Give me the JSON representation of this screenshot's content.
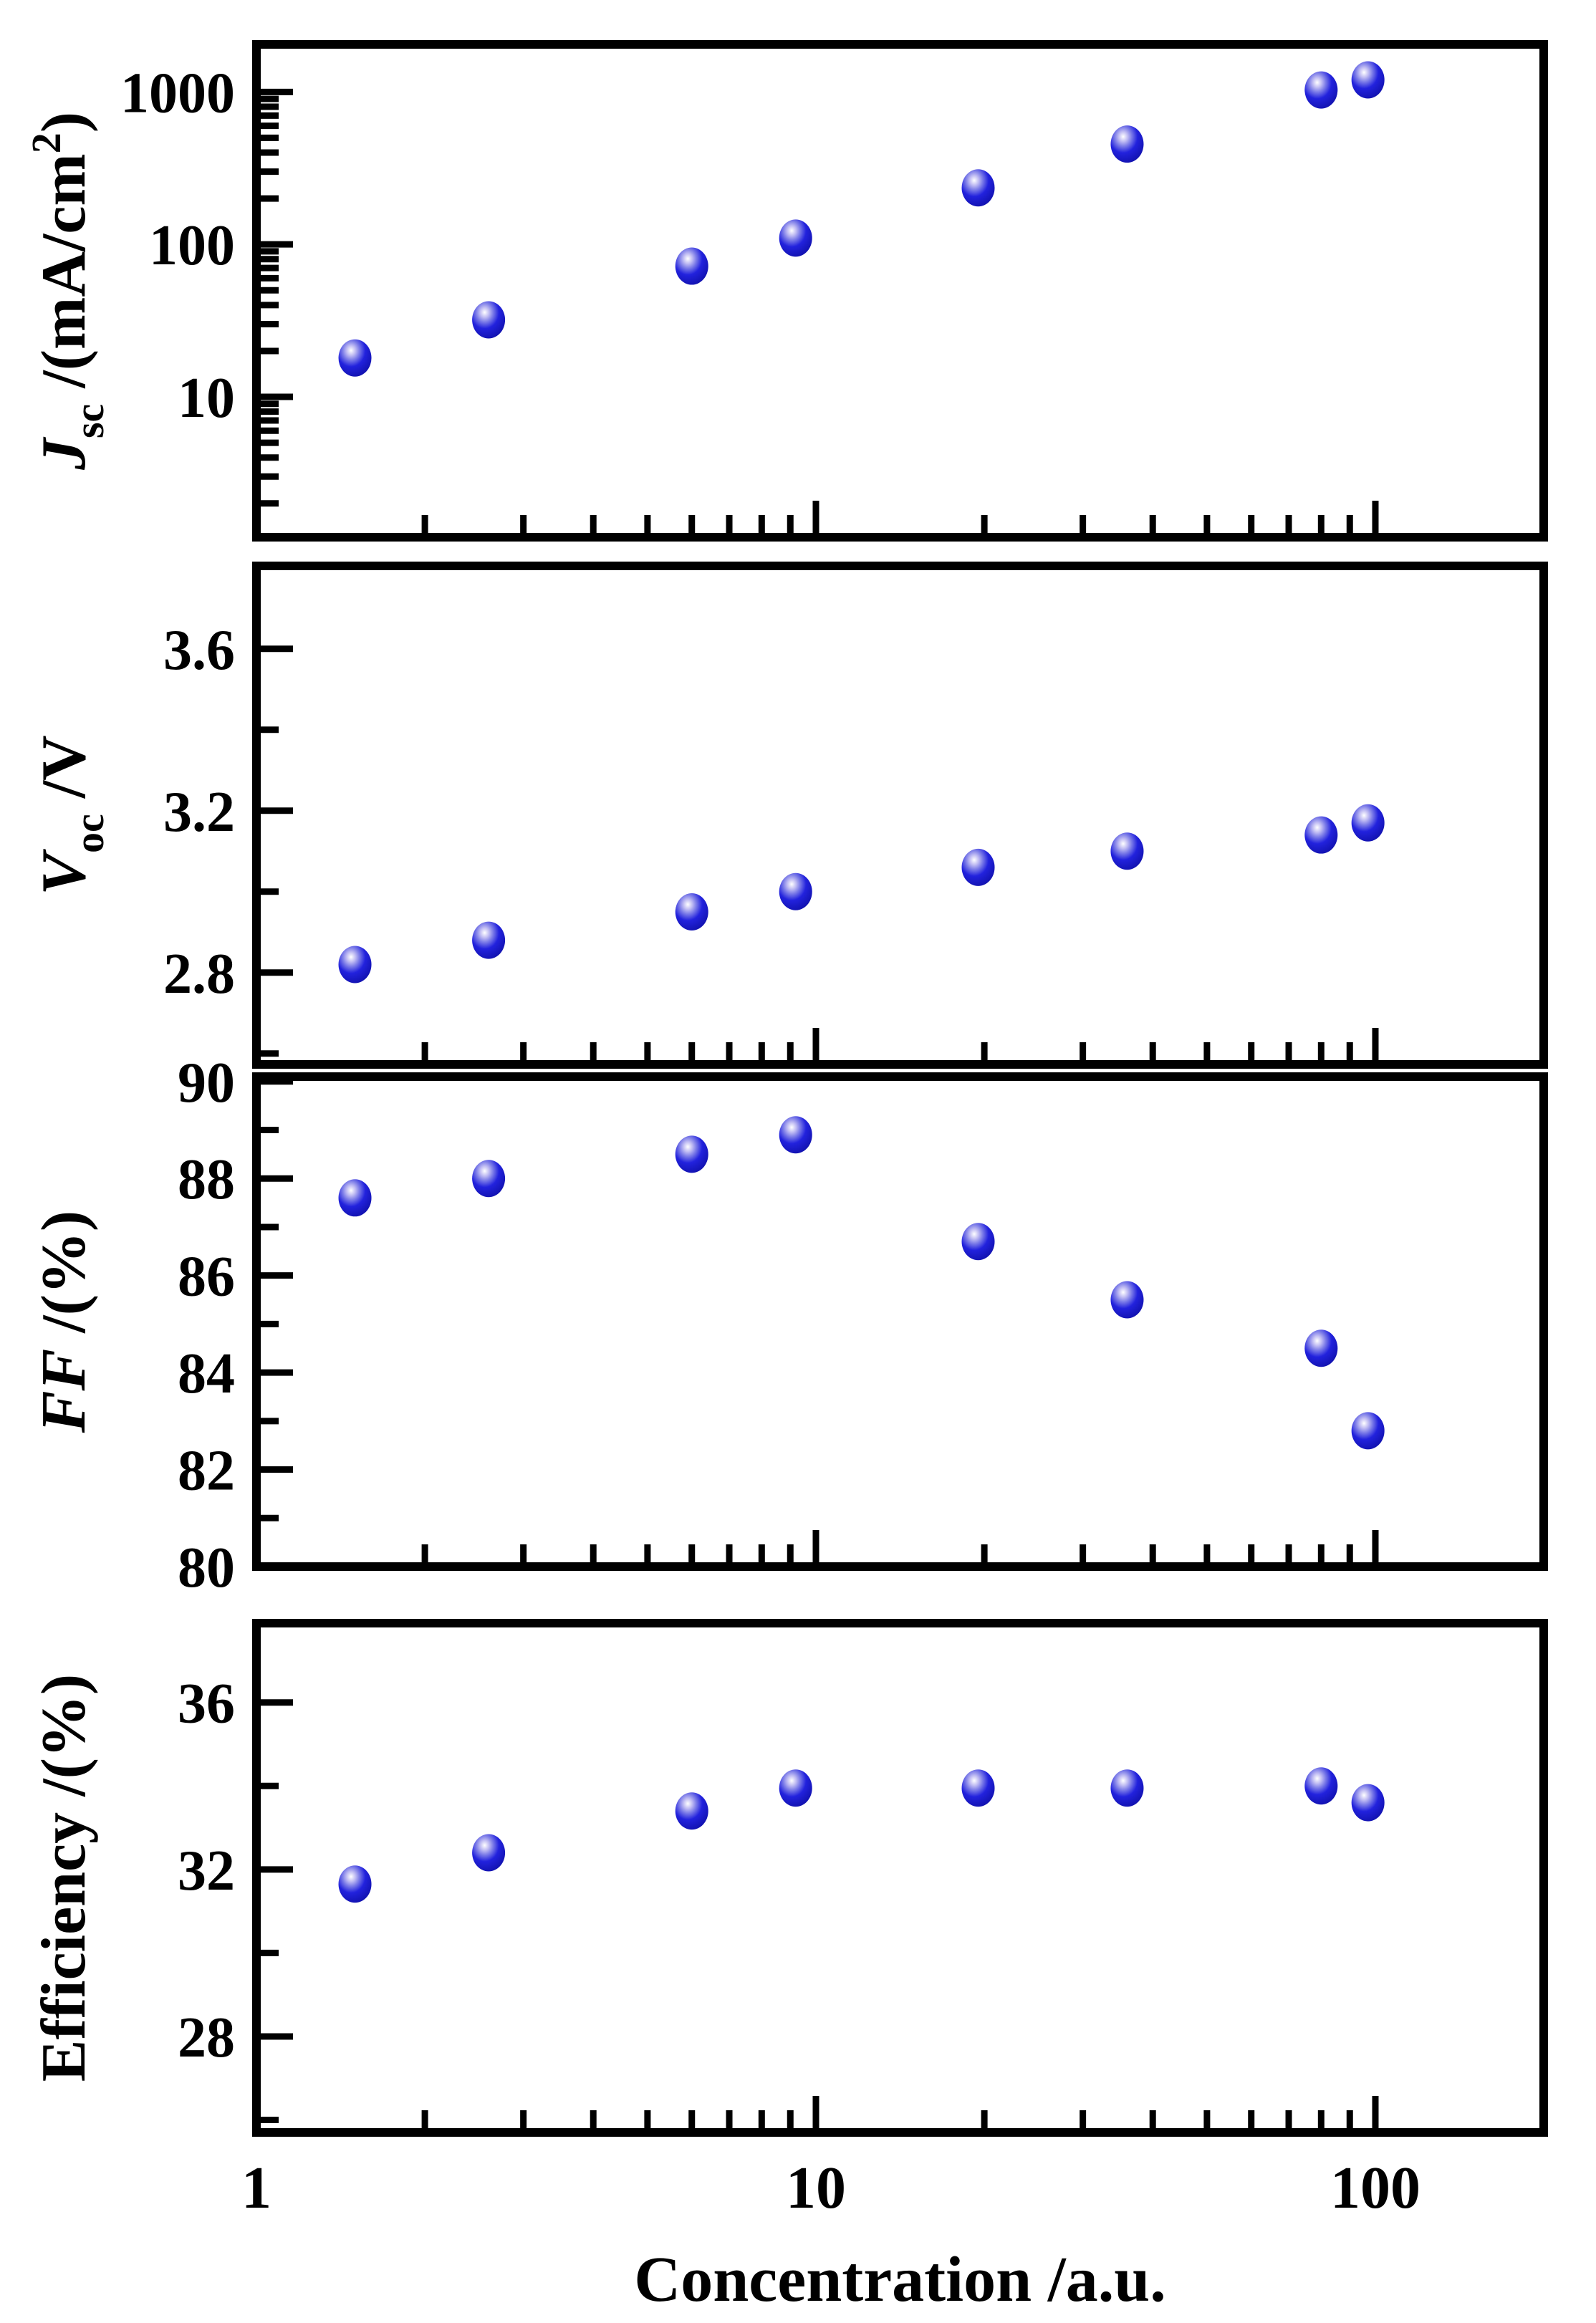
{
  "figure": {
    "title": "",
    "background_color": "#ffffff",
    "axis_color": "#000000",
    "marker_color": "#2222dd",
    "marker_highlight": "#ffffff"
  },
  "chart_data": {
    "type": "scatter",
    "x": [
      1.5,
      2.6,
      6.0,
      9.2,
      19.5,
      36,
      80,
      97
    ],
    "xlabel": "Concentration /a.u.",
    "x_scale": "log",
    "x_range": [
      1,
      200
    ],
    "x_tick_labels": [
      "1",
      "10",
      "100"
    ],
    "x_tick_values": [
      1,
      10,
      100
    ],
    "grid": false,
    "legend": "none",
    "panels": [
      {
        "name": "jsc",
        "ylabel_plain": "Jsc /(mA/cm2)",
        "ylabel_parts": [
          {
            "t": "J",
            "style": "italic"
          },
          {
            "t": "sc",
            "script": "sub"
          },
          {
            "t": " /(mA/cm"
          },
          {
            "t": "2",
            "script": "sup"
          },
          {
            "t": ")"
          }
        ],
        "y_scale": "log",
        "y_range": [
          1.2,
          2050
        ],
        "y_tick_values": [
          10,
          100,
          1000
        ],
        "y_tick_labels": [
          "10",
          "100",
          "1000"
        ],
        "values": [
          18,
          32,
          72,
          110,
          235,
          455,
          1030,
          1200
        ]
      },
      {
        "name": "voc",
        "ylabel_plain": "Voc /V",
        "ylabel_parts": [
          {
            "t": "V",
            "style": "italic"
          },
          {
            "t": "oc",
            "script": "sub"
          },
          {
            "t": " /V"
          }
        ],
        "y_scale": "linear",
        "y_range": [
          2.573,
          3.805
        ],
        "y_tick_values": [
          2.8,
          3.2,
          3.6
        ],
        "y_tick_labels": [
          "2.8",
          "3.2",
          "3.6"
        ],
        "y_minor_ticks": [
          2.6,
          3.0,
          3.4,
          3.8
        ],
        "values": [
          2.82,
          2.88,
          2.95,
          3.0,
          3.06,
          3.1,
          3.14,
          3.17
        ]
      },
      {
        "name": "ff",
        "ylabel_plain": "FF /(%)",
        "ylabel_parts": [
          {
            "t": "FF",
            "style": "italic"
          },
          {
            "t": " /(%)"
          }
        ],
        "y_scale": "linear",
        "y_range": [
          80,
          90.1
        ],
        "y_tick_values": [
          80,
          82,
          84,
          86,
          88,
          90
        ],
        "y_tick_labels": [
          "80",
          "82",
          "84",
          "86",
          "88",
          "90"
        ],
        "y_minor_ticks": [
          81,
          83,
          85,
          87,
          89
        ],
        "values": [
          87.6,
          88.0,
          88.5,
          88.9,
          86.7,
          85.5,
          84.5,
          82.8
        ]
      },
      {
        "name": "eff",
        "ylabel_plain": "Efficiency /(%)",
        "ylabel_parts": [
          {
            "t": "Efficiency /(%)"
          }
        ],
        "y_scale": "linear",
        "y_range": [
          25.7,
          37.9
        ],
        "y_tick_values": [
          28,
          32,
          36
        ],
        "y_tick_labels": [
          "28",
          "32",
          "36"
        ],
        "y_minor_ticks": [
          26,
          30,
          34
        ],
        "values": [
          31.65,
          32.4,
          33.4,
          33.95,
          33.95,
          33.95,
          34.0,
          33.6
        ]
      }
    ]
  }
}
